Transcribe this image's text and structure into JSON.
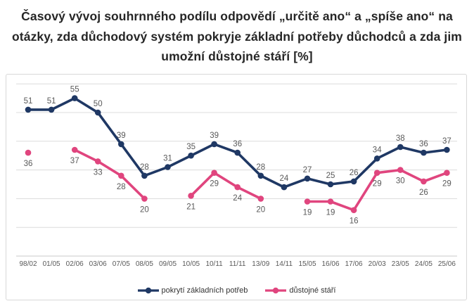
{
  "title": {
    "lines": [
      "Časový vývoj souhrnného podílu odpovědí „určitě ano“ a „spíše ano“ na",
      "otázky, zda důchodový systém pokryje základní potřeby důchodců a zda jim",
      "umožní důstojné stáří [%]"
    ]
  },
  "colors": {
    "series1": "#1F3864",
    "series2": "#E0457E",
    "gridline": "#DCDCDC",
    "axis_line": "#C9C9C9",
    "label_text": "#595959",
    "axis_text": "#595959",
    "title_text": "#262626",
    "legend_text": "#333333",
    "card_border": "#D8D8D8"
  },
  "chart_data": {
    "type": "line",
    "title": "Časový vývoj souhrnného podílu odpovědí „určitě ano“ a „spíše ano“ na otázky, zda důchodový systém pokryje základní potřeby důchodců a zda jim umožní důstojné stáří [%]",
    "categories": [
      "98/02",
      "01/05",
      "02/06",
      "03/06",
      "07/05",
      "08/05",
      "09/05",
      "10/05",
      "10/11",
      "11/11",
      "13/09",
      "14/11",
      "15/05",
      "16/06",
      "17/06",
      "20/03",
      "23/05",
      "24/05",
      "25/06"
    ],
    "series": [
      {
        "name": "pokrytí základních potřeb",
        "color": "#1F3864",
        "label_position": "above",
        "values": [
          51,
          51,
          55,
          50,
          39,
          28,
          31,
          35,
          39,
          36,
          28,
          24,
          27,
          25,
          26,
          34,
          38,
          36,
          37
        ]
      },
      {
        "name": "důstojné stáří",
        "color": "#E0457E",
        "label_position": "below",
        "values": [
          36,
          null,
          37,
          33,
          28,
          20,
          null,
          21,
          29,
          24,
          20,
          null,
          19,
          19,
          16,
          29,
          30,
          26,
          29
        ]
      }
    ],
    "xlabel": "",
    "ylabel": "",
    "unit": "%",
    "ylim": [
      0,
      62
    ],
    "grid": "horizontal",
    "gridline_step": 10,
    "data_labels": true,
    "legend_position": "bottom"
  }
}
